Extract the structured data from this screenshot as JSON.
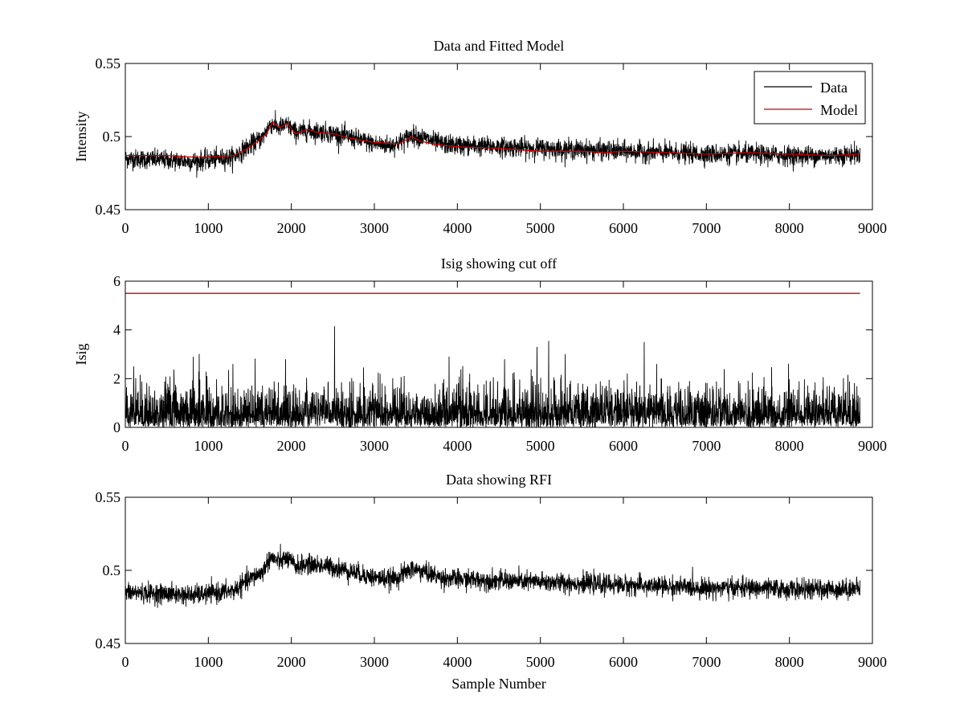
{
  "chart_data": [
    {
      "type": "line",
      "title": "Data and Fitted Model",
      "xlabel": "",
      "ylabel": "Intensity",
      "xlim": [
        0,
        9000
      ],
      "ylim": [
        0.45,
        0.55
      ],
      "xticks": [
        0,
        1000,
        2000,
        3000,
        4000,
        5000,
        6000,
        7000,
        8000,
        9000
      ],
      "yticks": [
        0.45,
        0.5,
        0.55
      ],
      "ytick_labels": [
        "0.45",
        "0.5",
        "0.55"
      ],
      "legend": {
        "position": "top-right",
        "entries": [
          "Data",
          "Model"
        ]
      },
      "series": [
        {
          "name": "Data",
          "color": "#000000",
          "noise_band": 0.006,
          "x": [
            0,
            500,
            800,
            1000,
            1300,
            1500,
            1650,
            1750,
            1850,
            1950,
            2050,
            2200,
            2400,
            2600,
            2800,
            3000,
            3200,
            3300,
            3450,
            3600,
            3800,
            4000,
            4500,
            5000,
            5500,
            6000,
            6500,
            7000,
            7500,
            8000,
            8500,
            8850
          ],
          "values": [
            0.485,
            0.484,
            0.483,
            0.484,
            0.486,
            0.494,
            0.499,
            0.509,
            0.506,
            0.508,
            0.503,
            0.504,
            0.503,
            0.501,
            0.498,
            0.495,
            0.494,
            0.496,
            0.501,
            0.499,
            0.495,
            0.494,
            0.493,
            0.492,
            0.491,
            0.49,
            0.489,
            0.488,
            0.488,
            0.487,
            0.487,
            0.488
          ]
        },
        {
          "name": "Model",
          "color": "#cc0000",
          "x": [
            0,
            500,
            800,
            1000,
            1300,
            1450,
            1600,
            1700,
            1780,
            1850,
            1950,
            2050,
            2200,
            2300,
            2500,
            2700,
            3000,
            3300,
            3450,
            3550,
            3700,
            4000,
            4500,
            5000,
            5500,
            5800,
            6000,
            6500,
            7000,
            7500,
            8000,
            8500,
            8850
          ],
          "values": [
            0.487,
            0.487,
            0.486,
            0.486,
            0.487,
            0.491,
            0.497,
            0.502,
            0.51,
            0.506,
            0.509,
            0.502,
            0.505,
            0.503,
            0.502,
            0.499,
            0.496,
            0.495,
            0.5,
            0.497,
            0.495,
            0.493,
            0.492,
            0.49,
            0.49,
            0.489,
            0.49,
            0.489,
            0.488,
            0.489,
            0.488,
            0.487,
            0.488
          ]
        }
      ]
    },
    {
      "type": "line",
      "title": "Isig showing cut off",
      "xlabel": "",
      "ylabel": "Isig",
      "xlim": [
        0,
        9000
      ],
      "ylim": [
        0,
        6
      ],
      "xticks": [
        0,
        1000,
        2000,
        3000,
        4000,
        5000,
        6000,
        7000,
        8000,
        9000
      ],
      "yticks": [
        0,
        2,
        4,
        6
      ],
      "ytick_labels": [
        "0",
        "2",
        "4",
        "6"
      ],
      "series": [
        {
          "color": "#000000",
          "kind": "abs_noise",
          "x_end": 8850,
          "typical": 0.75,
          "peaks": [
            [
              2520,
              4.15
            ],
            [
              5100,
              3.55
            ],
            [
              6250,
              3.5
            ],
            [
              820,
              2.9
            ],
            [
              4960,
              3.3
            ],
            [
              5300,
              3.0
            ],
            [
              1930,
              2.8
            ],
            [
              3900,
              2.9
            ],
            [
              4570,
              2.8
            ],
            [
              100,
              2.5
            ],
            [
              6400,
              2.6
            ]
          ]
        },
        {
          "color": "#cc0000",
          "kind": "hline",
          "x": [
            0,
            8850
          ],
          "values": [
            5.5,
            5.5
          ]
        }
      ]
    },
    {
      "type": "line",
      "title": "Data showing RFI",
      "xlabel": "Sample Number",
      "ylabel": "",
      "xlim": [
        0,
        9000
      ],
      "ylim": [
        0.45,
        0.55
      ],
      "xticks": [
        0,
        1000,
        2000,
        3000,
        4000,
        5000,
        6000,
        7000,
        8000,
        9000
      ],
      "yticks": [
        0.45,
        0.5,
        0.55
      ],
      "ytick_labels": [
        "0.45",
        "0.5",
        "0.55"
      ],
      "series": [
        {
          "color": "#000000",
          "noise_band": 0.006,
          "x": [
            0,
            500,
            800,
            1000,
            1300,
            1500,
            1650,
            1750,
            1850,
            1950,
            2050,
            2200,
            2400,
            2600,
            2800,
            3000,
            3200,
            3300,
            3450,
            3600,
            3800,
            4000,
            4500,
            5000,
            5500,
            6000,
            6500,
            7000,
            7500,
            8000,
            8500,
            8850
          ],
          "values": [
            0.485,
            0.484,
            0.483,
            0.484,
            0.486,
            0.494,
            0.499,
            0.509,
            0.506,
            0.508,
            0.503,
            0.504,
            0.503,
            0.501,
            0.498,
            0.495,
            0.494,
            0.496,
            0.501,
            0.499,
            0.495,
            0.494,
            0.493,
            0.492,
            0.491,
            0.49,
            0.489,
            0.488,
            0.488,
            0.487,
            0.487,
            0.488
          ]
        }
      ]
    }
  ]
}
